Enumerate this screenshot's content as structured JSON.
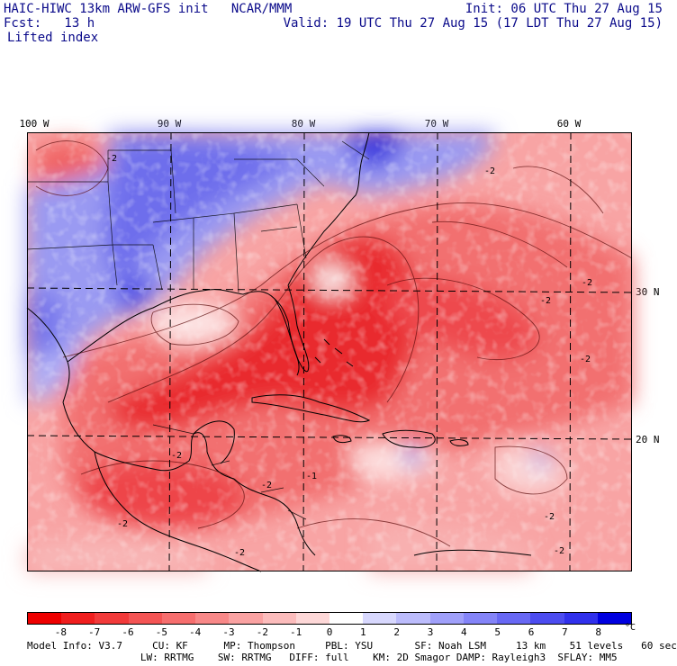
{
  "header": {
    "line1_left": "HAIC-HIWC 13km ARW-GFS init   NCAR/MMM",
    "line2_left": "Fcst:   13 h",
    "line3_left": "Lifted index",
    "line1_right": "Init: 06 UTC Thu 27 Aug 15",
    "line2_right": "Valid: 19 UTC Thu 27 Aug 15 (17 LDT Thu 27 Aug 15)"
  },
  "map": {
    "lon_labels": [
      "100 W",
      "90 W",
      "80 W",
      "70 W",
      "60 W"
    ],
    "lat_labels": [
      "30 N",
      "20 N"
    ],
    "contour_labels": [
      "-2",
      "-2",
      "-2",
      "-2",
      "-2",
      "-2",
      "-1",
      "-2",
      "-2",
      "-2",
      "-2",
      "-2"
    ],
    "colors": {
      "strong_red": "#e8282e",
      "mid_red": "#f06a6a",
      "light_red": "#f6a3a3",
      "pale_red": "#fbd0d0",
      "white": "#ffffff",
      "light_blue": "#c8c8f6",
      "mid_blue": "#7c7cee",
      "strong_blue": "#3434e0",
      "grid": "#000000",
      "coast": "#000000"
    }
  },
  "colorbar": {
    "ticks": [
      "-8",
      "-7",
      "-6",
      "-5",
      "-4",
      "-3",
      "-2",
      "-1",
      "0",
      "1",
      "2",
      "3",
      "4",
      "5",
      "6",
      "7",
      "8"
    ],
    "unit": "°C",
    "colors": [
      "#ee0000",
      "#f01e1e",
      "#f23a3a",
      "#f45454",
      "#f66e6e",
      "#f88888",
      "#faa2a2",
      "#fcbcbc",
      "#fed8d8",
      "#ffffff",
      "#d8d8fe",
      "#bcbcfc",
      "#a0a0fa",
      "#8484f8",
      "#6868f4",
      "#4c4cf0",
      "#3030ec",
      "#0000e0"
    ]
  },
  "footer": {
    "line1": "Model Info: V3.7     CU: KF      MP: Thompson     PBL: YSU       SF: Noah LSM     13 km    51 levels   60 sec",
    "line2": "                   LW: RRTMG    SW: RRTMG   DIFF: full    KM: 2D Smagor DAMP: Rayleigh3  SFLAY: MM5"
  }
}
